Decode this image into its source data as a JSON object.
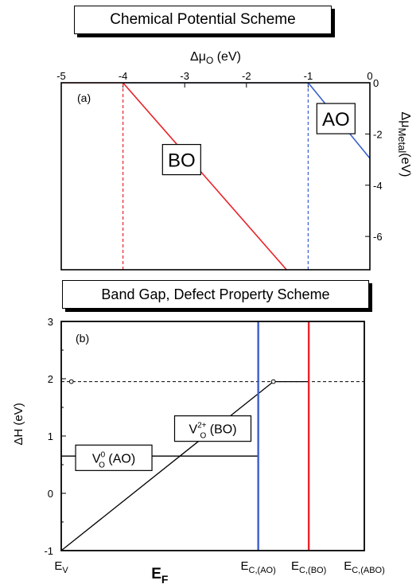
{
  "chart_data": [
    {
      "type": "line",
      "title": "Chemical Potential Scheme",
      "panel_label": "(a)",
      "xlabel_symbol": "Δμ",
      "xlabel_sub": "O",
      "xlabel_unit": " (eV)",
      "ylabel_symbol": "Δμ",
      "ylabel_sub": "Metal",
      "ylabel_unit": "(eV)",
      "xlim": [
        -5,
        0
      ],
      "ylim": [
        -7.3,
        0
      ],
      "xticks": [
        -5,
        -4,
        -3,
        -2,
        -1,
        0
      ],
      "yticks": [
        0,
        -2,
        -4,
        -6
      ],
      "grid": false,
      "series": [
        {
          "name": "BO",
          "color": "#e8232a",
          "style": "solid",
          "x": [
            -5,
            -4,
            -1.35
          ],
          "y": [
            0,
            0,
            -7.3
          ]
        },
        {
          "name": "AO",
          "color": "#3a5fcd",
          "style": "solid",
          "x": [
            -4,
            -1,
            0
          ],
          "y": [
            0,
            0,
            -2.95
          ]
        }
      ],
      "vlines": [
        {
          "x": -4,
          "color": "#e8232a",
          "style": "dashed"
        },
        {
          "x": -1,
          "color": "#3a5fcd",
          "style": "dashed"
        }
      ],
      "annotations": [
        {
          "text": "BO",
          "x": -3.05,
          "y": -3.0
        },
        {
          "text": "AO",
          "x": -0.55,
          "y": -1.4
        }
      ]
    },
    {
      "type": "line",
      "title": "Band Gap, Defect Property Scheme",
      "panel_label": "(b)",
      "xlabel": "E",
      "xlabel_sub": "F",
      "ylabel": "ΔH (eV)",
      "xlim": [
        0,
        3
      ],
      "ylim": [
        -1,
        3
      ],
      "yticks": [
        -1,
        0,
        1,
        2,
        3
      ],
      "xtick_labels": [
        {
          "main": "E",
          "sub": "V",
          "x": 0
        },
        {
          "main": "E",
          "sub": "C,(AO)",
          "x": 1.95
        },
        {
          "main": "E",
          "sub": "C,(BO)",
          "x": 2.45
        },
        {
          "main": "E",
          "sub": "C,(ABO)",
          "x": 3
        }
      ],
      "grid": false,
      "series": [
        {
          "name": "V_O^2+ (BO)",
          "color": "#000000",
          "style": "solid",
          "x": [
            0,
            2.1,
            2.45
          ],
          "y": [
            -1,
            1.95,
            1.95
          ]
        },
        {
          "name": "V_O^0 (AO)",
          "color": "#000000",
          "style": "solid",
          "x": [
            0,
            1.95
          ],
          "y": [
            0.65,
            0.65
          ]
        }
      ],
      "hlines": [
        {
          "y": 1.95,
          "color": "#000000",
          "style": "dashed"
        }
      ],
      "vlines": [
        {
          "x": 1.95,
          "color": "#3a5fcd",
          "style": "solid"
        },
        {
          "x": 2.45,
          "color": "#e8232a",
          "style": "solid"
        }
      ],
      "markers": [
        {
          "x": 0.1,
          "y": 1.95
        },
        {
          "x": 2.1,
          "y": 1.95
        }
      ],
      "annotations": [
        {
          "main": "V",
          "sub": "O",
          "sup": "2+",
          "rest": " (BO)",
          "x": 1.5,
          "y": 1.13
        },
        {
          "main": "V",
          "sub": "O",
          "sup": "0",
          "rest": " (AO)",
          "x": 0.52,
          "y": 0.62
        }
      ]
    }
  ]
}
